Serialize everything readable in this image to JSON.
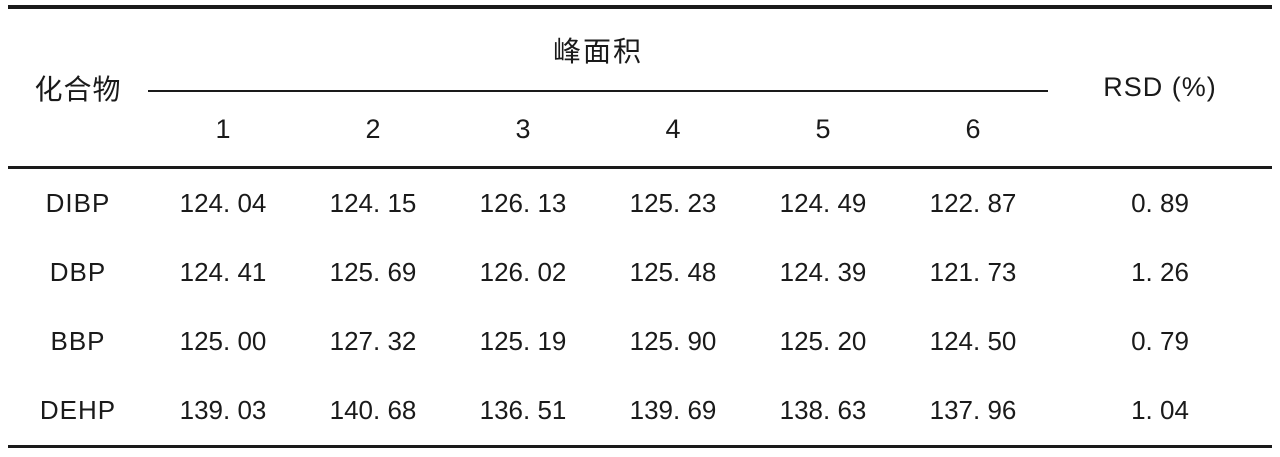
{
  "table": {
    "compound_header": "化合物",
    "group_header": "峰面积",
    "rsd_header": "RSD (%)",
    "run_headers": [
      "1",
      "2",
      "3",
      "4",
      "5",
      "6"
    ],
    "rows": [
      {
        "compound": "DIBP",
        "values": [
          "124. 04",
          "124. 15",
          "126. 13",
          "125. 23",
          "124. 49",
          "122. 87"
        ],
        "rsd": "0. 89"
      },
      {
        "compound": "DBP",
        "values": [
          "124. 41",
          "125. 69",
          "126. 02",
          "125. 48",
          "124. 39",
          "121. 73"
        ],
        "rsd": "1. 26"
      },
      {
        "compound": "BBP",
        "values": [
          "125. 00",
          "127. 32",
          "125. 19",
          "125. 90",
          "125. 20",
          "124. 50"
        ],
        "rsd": "0. 79"
      },
      {
        "compound": "DEHP",
        "values": [
          "139. 03",
          "140. 68",
          "136. 51",
          "139. 69",
          "138. 63",
          "137. 96"
        ],
        "rsd": "1. 04"
      }
    ],
    "colors": {
      "text": "#1a1a1a",
      "rule": "#1a1a1a",
      "background": "#ffffff"
    }
  }
}
